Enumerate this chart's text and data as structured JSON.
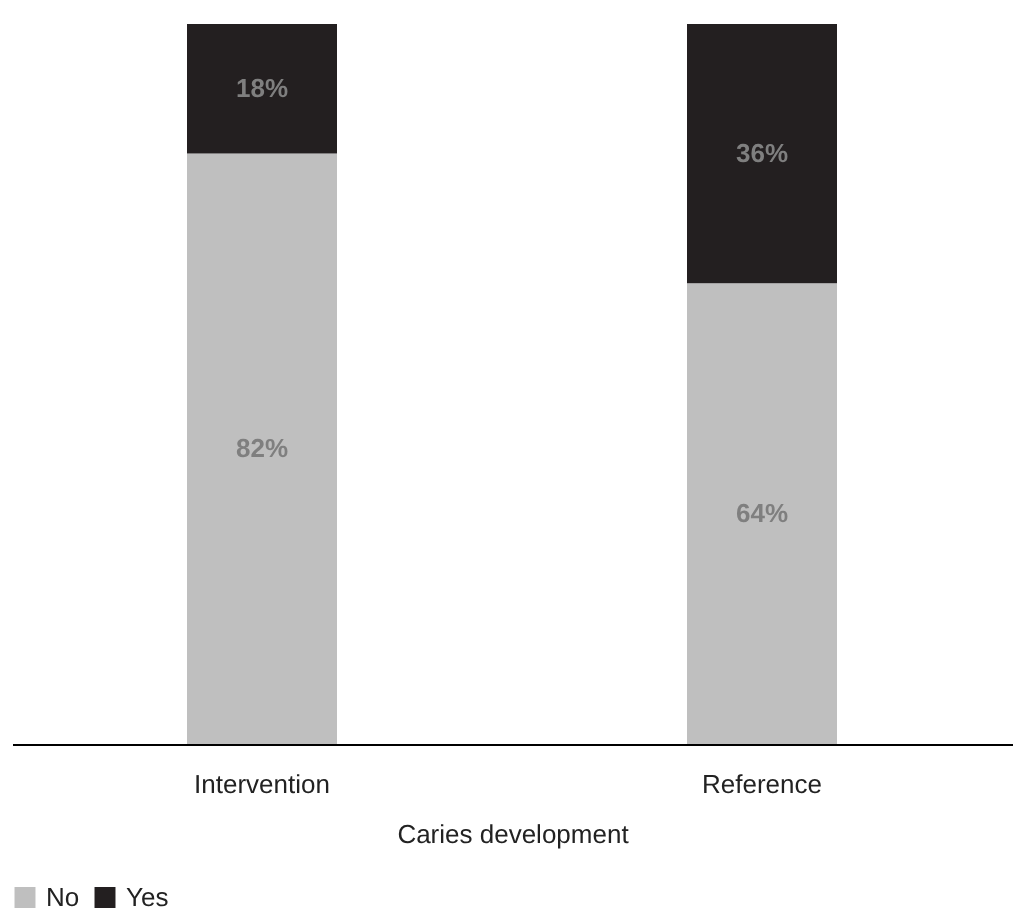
{
  "chart_data": {
    "type": "bar",
    "stacked": true,
    "xlabel": "Caries development",
    "categories": [
      "Intervention",
      "Reference"
    ],
    "legend": "bottom",
    "series": [
      {
        "name": "No",
        "color": "#bfbfbf",
        "values": [
          82,
          64
        ],
        "value_labels": [
          "82%",
          "64%"
        ]
      },
      {
        "name": "Yes",
        "color": "#231f20",
        "values": [
          18,
          36
        ],
        "value_labels": [
          "18%",
          "36%"
        ]
      }
    ]
  }
}
